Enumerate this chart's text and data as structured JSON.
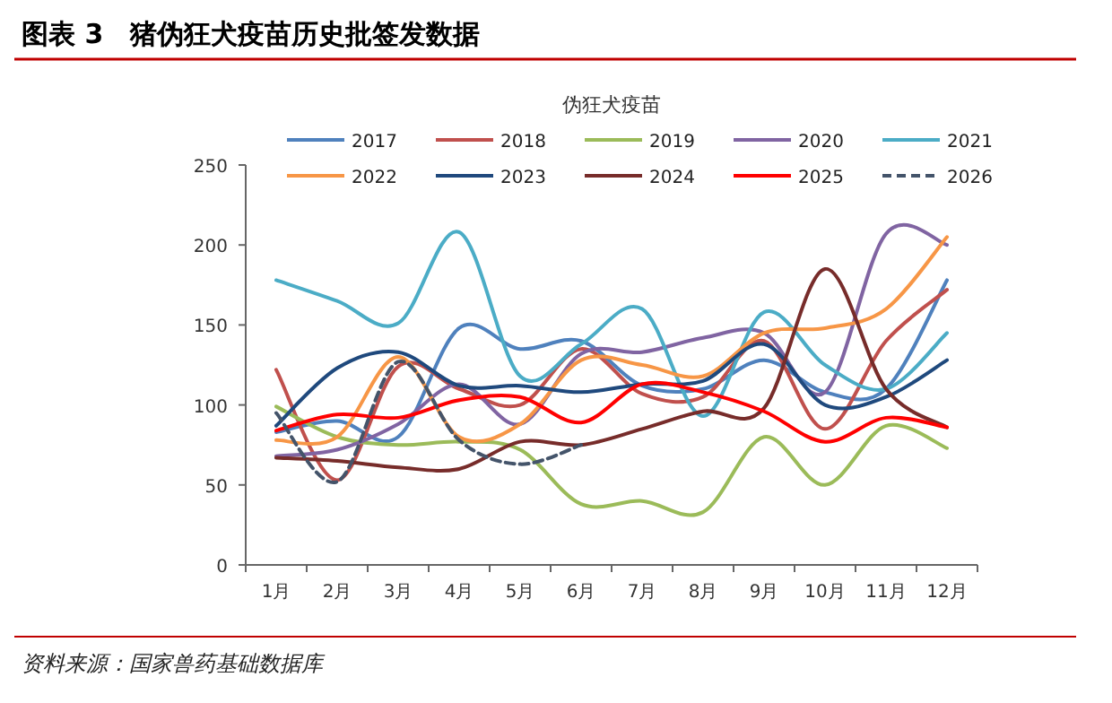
{
  "chart_data": {
    "type": "line",
    "title": "图表 3　猪伪狂犬疫苗历史批签发数据",
    "subtitle": "伪狂犬疫苗",
    "categories": [
      "1月",
      "2月",
      "3月",
      "4月",
      "5月",
      "6月",
      "7月",
      "8月",
      "9月",
      "10月",
      "11月",
      "12月"
    ],
    "ylim": [
      0,
      250
    ],
    "yticks": [
      0,
      50,
      100,
      150,
      200,
      250
    ],
    "grid": false,
    "legend": "top",
    "line_style": "solid",
    "annotations": [
      "资料来源：国家兽药基础数据库"
    ],
    "series": [
      {
        "name": "2017",
        "color": "#4f81bd",
        "values": [
          83,
          90,
          80,
          148,
          135,
          140,
          112,
          110,
          128,
          108,
          110,
          178
        ]
      },
      {
        "name": "2018",
        "color": "#c0504d",
        "values": [
          122,
          53,
          124,
          110,
          100,
          135,
          107,
          105,
          140,
          85,
          140,
          172
        ]
      },
      {
        "name": "2019",
        "color": "#9bbb59",
        "values": [
          99,
          80,
          75,
          77,
          72,
          38,
          40,
          33,
          80,
          50,
          87,
          73
        ]
      },
      {
        "name": "2020",
        "color": "#8064a2",
        "values": [
          68,
          72,
          88,
          113,
          88,
          132,
          133,
          142,
          145,
          108,
          207,
          200
        ]
      },
      {
        "name": "2021",
        "color": "#4bacc6",
        "values": [
          178,
          165,
          151,
          208,
          118,
          138,
          160,
          93,
          158,
          125,
          110,
          145
        ]
      },
      {
        "name": "2022",
        "color": "#f79646",
        "values": [
          78,
          80,
          130,
          80,
          88,
          128,
          125,
          118,
          145,
          148,
          160,
          205
        ]
      },
      {
        "name": "2023",
        "color": "#1f497d",
        "values": [
          87,
          123,
          133,
          112,
          112,
          108,
          113,
          115,
          138,
          100,
          105,
          128
        ]
      },
      {
        "name": "2024",
        "color": "#772c2a",
        "values": [
          67,
          65,
          61,
          60,
          77,
          75,
          85,
          96,
          98,
          185,
          110,
          86
        ]
      },
      {
        "name": "2025",
        "color": "#ff0000",
        "values": [
          84,
          94,
          92,
          103,
          105,
          89,
          113,
          108,
          96,
          77,
          92,
          86
        ]
      },
      {
        "name": "2026",
        "color": "#44546a",
        "line_style": "dashed",
        "values": [
          95,
          52,
          127,
          78,
          63,
          75,
          null,
          null,
          null,
          null,
          null,
          null
        ]
      }
    ]
  }
}
